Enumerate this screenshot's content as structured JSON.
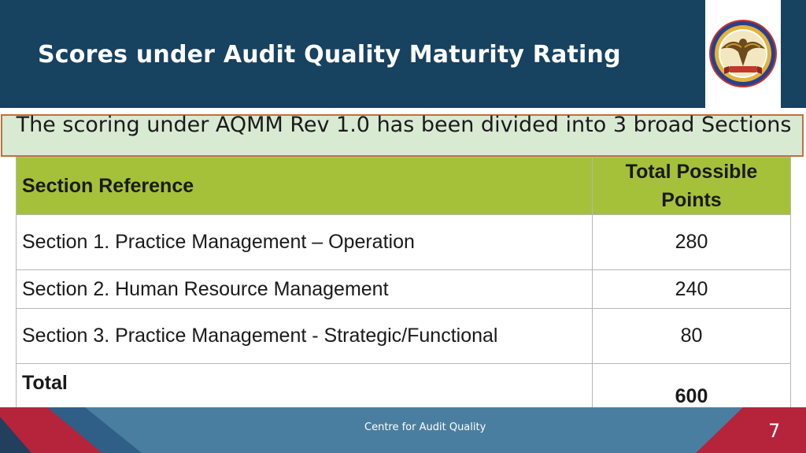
{
  "slide": {
    "title": "Scores under Audit Quality Maturity Rating",
    "subtitle": "The scoring under AQMM Rev 1.0 has been divided into 3 broad Sections",
    "logo_icon": "institute-emblem-icon"
  },
  "table": {
    "headers": [
      "Section Reference",
      "Total Possible Points"
    ],
    "rows": [
      {
        "ref": "Section 1. Practice Management – Operation",
        "points": "280"
      },
      {
        "ref": "Section 2. Human Resource Management",
        "points": "240"
      },
      {
        "ref": "Section 3. Practice Management - Strategic/Functional",
        "points": "80"
      }
    ],
    "total": {
      "label": "Total",
      "points": "600"
    }
  },
  "footer": {
    "text": "Centre for Audit Quality",
    "page_number": "7"
  },
  "colors": {
    "header_bg": "#174260",
    "table_header_bg": "#a5c13a",
    "subtitle_bg": "#d9ead3",
    "footer_blue": "#4a7ea0",
    "footer_red": "#c0392b"
  }
}
